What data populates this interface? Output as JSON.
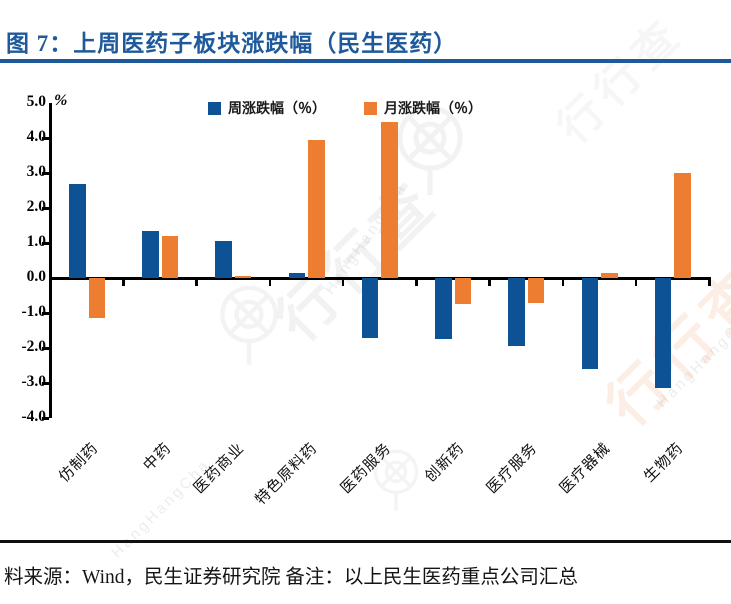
{
  "page": {
    "title": "图 7：上周医药子板块涨跌幅（民生医药）",
    "title_color": "#1E5A9B"
  },
  "chart_data": {
    "type": "bar",
    "title": "上周医药子板块涨跌幅（民生医药）",
    "unit_label": "%",
    "categories": [
      "仿制药",
      "中药",
      "医药商业",
      "特色原料药",
      "医药服务",
      "创新药",
      "医疗服务",
      "医疗器械",
      "生物药"
    ],
    "series": [
      {
        "name": "周涨跌幅（％）",
        "color": "#0E5296",
        "values": [
          2.7,
          1.35,
          1.05,
          0.15,
          -1.7,
          -1.75,
          -1.95,
          -2.6,
          -3.15
        ]
      },
      {
        "name": "月涨跌幅（％）",
        "color": "#ED7D31",
        "values": [
          -1.15,
          1.2,
          0.05,
          3.95,
          4.45,
          -0.75,
          -0.7,
          0.15,
          3.0
        ]
      }
    ],
    "ylim": [
      -4.0,
      5.0
    ],
    "yticks": [
      "5.0",
      "4.0",
      "3.0",
      "2.0",
      "1.0",
      "0.0",
      "-1.0",
      "-2.0",
      "-3.0",
      "-4.0"
    ],
    "grid": false,
    "legend_position": "top"
  },
  "footer": {
    "source_text": "料来源：Wind，民生证券研究院  备注：以上民生医药重点公司汇总"
  },
  "watermark": {
    "text_cn": "行行查",
    "text_en": "HangHangCha"
  }
}
